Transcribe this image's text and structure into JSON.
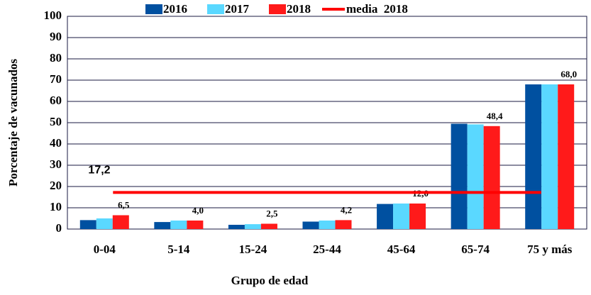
{
  "chart_data": {
    "type": "bar",
    "categories": [
      "0-04",
      "5-14",
      "15-24",
      "25-44",
      "45-64",
      "65-74",
      "75 y más"
    ],
    "series": [
      {
        "name": "2016",
        "color": "#0050a0",
        "values": [
          4.2,
          3.3,
          2.0,
          3.5,
          11.8,
          49.5,
          68.0
        ]
      },
      {
        "name": "2017",
        "color": "#5ad8ff",
        "values": [
          5.0,
          4.0,
          2.3,
          4.0,
          12.0,
          49.2,
          68.0
        ]
      },
      {
        "name": "2018",
        "color": "#ff1a1a",
        "values": [
          6.5,
          4.0,
          2.5,
          4.2,
          12.0,
          48.4,
          68.0
        ],
        "value_labels": [
          "6,5",
          "4,0",
          "2,5",
          "4,2",
          "12,0",
          "48,4",
          "68,0"
        ]
      }
    ],
    "reference_line": {
      "name": "media  2018",
      "color": "#ff0000",
      "value": 17.2,
      "value_label": "17,2"
    },
    "xlabel": "Grupo de edad",
    "ylabel": "Porcentaje  de vacunados",
    "ylim": [
      0,
      100
    ],
    "yticks": [
      0,
      10,
      20,
      30,
      40,
      50,
      60,
      70,
      80,
      90,
      100
    ],
    "grid": true
  }
}
